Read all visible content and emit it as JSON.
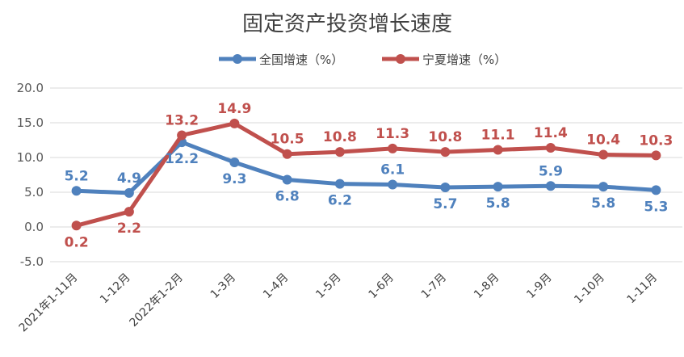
{
  "chart_data": {
    "type": "line",
    "title": "固定资产投资增长速度",
    "categories": [
      "2021年1-11月",
      "1-12月",
      "2022年1-2月",
      "1-3月",
      "1-4月",
      "1-5月",
      "1-6月",
      "1-7月",
      "1-8月",
      "1-9月",
      "1-10月",
      "1-11月"
    ],
    "series": [
      {
        "name": "全国增速（%）",
        "color": "#4f81bd",
        "values": [
          5.2,
          4.9,
          12.2,
          9.3,
          6.8,
          6.2,
          6.1,
          5.7,
          5.8,
          5.9,
          5.8,
          5.3
        ],
        "labels": [
          "5.2",
          "4.9",
          "12.2",
          "9.3",
          "6.8",
          "6.2",
          "6.1",
          "5.7",
          "5.8",
          "5.9",
          "5.8",
          "5.3"
        ]
      },
      {
        "name": "宁夏增速（%）",
        "color": "#c0504d",
        "values": [
          0.2,
          2.2,
          13.2,
          14.9,
          10.5,
          10.8,
          11.3,
          10.8,
          11.1,
          11.4,
          10.4,
          10.3
        ],
        "labels": [
          "0.2",
          "2.2",
          "13.2",
          "14.9",
          "10.5",
          "10.8",
          "11.3",
          "10.8",
          "11.1",
          "11.4",
          "10.4",
          "10.3"
        ]
      }
    ],
    "ylim": [
      -5,
      20
    ],
    "yticks": [
      20,
      15,
      10,
      5,
      0,
      -5
    ],
    "ytick_labels": [
      "20.0",
      "15.0",
      "10.0",
      "5.0",
      "0.0",
      "-5.0"
    ],
    "grid": true,
    "legend_position": "top-center"
  }
}
